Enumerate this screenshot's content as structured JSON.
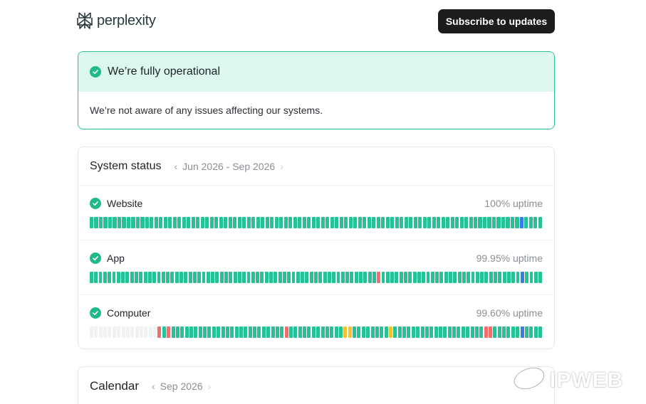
{
  "brand": {
    "name": "perplexity"
  },
  "header": {
    "subscribe_label": "Subscribe to updates"
  },
  "banner": {
    "title": "We’re fully operational",
    "message": "We’re not aware of any issues affecting our systems."
  },
  "system_status": {
    "title": "System status",
    "range": "Jun 2026 - Sep 2026",
    "services": [
      {
        "name": "Website",
        "uptime": "100% uptime",
        "days": "GGGGGGGGGGGGGGGGGGGGGGGGGGGGGGGGGGGGGGGGGGGGGGGGGGGGGGGGGGGGGGGGGGGGGGGGGGGGGGGGGGGGGGGGGGGGGBGGGG"
      },
      {
        "name": "App",
        "uptime": "99.95% uptime",
        "days": "GGGGGGGGGGGGGGGGGGGGGGGGGGGGGGGGGGGGGGGGGGGGGGGGGGGGGGGGGGGGGGGGRGGGGGGGGGGGGGGGGGGGGGGGGGGGGGGGBGGGG"
      },
      {
        "name": "Computer",
        "uptime": "99.60% uptime",
        "days": "EEEEEEEEEEEEEEERGRGGGGGGGGGGGGGGGGGGGGGGGGGRGGGGGGGGGGGGYYGGGGGGGGYGGGGGGGGGGGGGGGGGGGGRRGGGGGGBGGGG"
      }
    ],
    "legend_colors": {
      "G": "#26c197",
      "R": "#f06e6e",
      "Y": "#f2c230",
      "B": "#3b7be8",
      "E": "#f1f2f3"
    }
  },
  "calendar": {
    "title": "Calendar",
    "range": "Sep 2026"
  },
  "watermark": {
    "text": "IPWEB"
  }
}
